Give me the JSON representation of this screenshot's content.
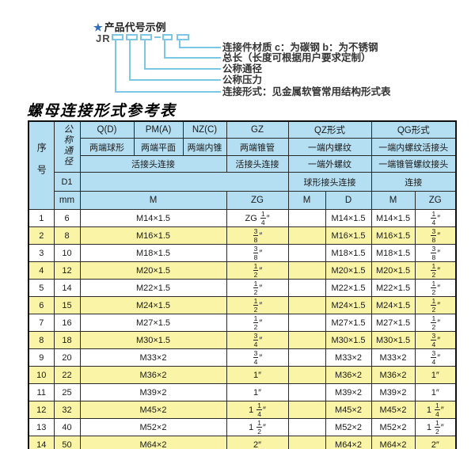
{
  "diagram": {
    "heading": "产品代号示例",
    "star": "★",
    "code_prefix": "JR",
    "dash": "—",
    "labels": [
      "连接件材质  c：为碳钢  b：为不锈钢",
      "总长（长度可根据用户要求定制）",
      "公称通径",
      "公称压力",
      "连接形式：见金属软管常用结构形式表"
    ]
  },
  "table": {
    "title": "螺母连接形式参考表",
    "header": {
      "serial": "序号",
      "dn": "公称通径",
      "d1": "D1",
      "mm": "mm",
      "qd": "Q(D)",
      "pma": "PM(A)",
      "nzc": "NZ(C)",
      "gz": "GZ",
      "qz": "QZ形式",
      "qg": "QG形式",
      "qd_desc": "两端球形",
      "pma_desc": "两端平面",
      "nzc_desc": "两端内锥",
      "gz_desc": "两端锥管",
      "qz_desc1": "一端内螺纹",
      "qg_desc1": "一端内螺纹活接头",
      "union_conn": "活接头连接",
      "gz_conn": "活接头连接",
      "qz_desc2": "一端外螺纹",
      "qg_desc2": "一端锥管螺纹接头",
      "qz_conn": "球形接头连接",
      "qg_conn": "连接",
      "m": "M",
      "zg": "ZG",
      "qz_m": "M",
      "qz_d": "D",
      "qg_m": "M",
      "qg_zg": "ZG"
    },
    "rows": [
      {
        "no": "1",
        "dn": "6",
        "m": "M14×1.5",
        "zg": "ZG 1/4″",
        "qz_m": "",
        "qz_d": "M14×1.5",
        "qg_m": "M14×1.5",
        "qg_zg": "1/4″"
      },
      {
        "no": "2",
        "dn": "8",
        "m": "M16×1.5",
        "zg": "3/8″",
        "qz_m": "",
        "qz_d": "M16×1.5",
        "qg_m": "M16×1.5",
        "qg_zg": "3/8″"
      },
      {
        "no": "3",
        "dn": "10",
        "m": "M18×1.5",
        "zg": "3/8″",
        "qz_m": "",
        "qz_d": "M18×1.5",
        "qg_m": "M18×1.5",
        "qg_zg": "3/8″"
      },
      {
        "no": "4",
        "dn": "12",
        "m": "M20×1.5",
        "zg": "1/2″",
        "qz_m": "",
        "qz_d": "M20×1.5",
        "qg_m": "M20×1.5",
        "qg_zg": "1/2″"
      },
      {
        "no": "5",
        "dn": "14",
        "m": "M22×1.5",
        "zg": "1/2″",
        "qz_m": "",
        "qz_d": "M22×1.5",
        "qg_m": "M22×1.5",
        "qg_zg": "1/2″"
      },
      {
        "no": "6",
        "dn": "15",
        "m": "M24×1.5",
        "zg": "1/2″",
        "qz_m": "",
        "qz_d": "M24×1.5",
        "qg_m": "M24×1.5",
        "qg_zg": "1/2″"
      },
      {
        "no": "7",
        "dn": "16",
        "m": "M27×1.5",
        "zg": "1/2″",
        "qz_m": "",
        "qz_d": "M27×1.5",
        "qg_m": "M27×1.5",
        "qg_zg": "1/2″"
      },
      {
        "no": "8",
        "dn": "18",
        "m": "M30×1.5",
        "zg": "3/4″",
        "qz_m": "",
        "qz_d": "M30×1.5",
        "qg_m": "M30×1.5",
        "qg_zg": "3/4″"
      },
      {
        "no": "9",
        "dn": "20",
        "m": "M33×2",
        "zg": "3/4″",
        "qz_m": "",
        "qz_d": "M33×2",
        "qg_m": "M33×2",
        "qg_zg": "3/4″"
      },
      {
        "no": "10",
        "dn": "22",
        "m": "M36×2",
        "zg": "1″",
        "qz_m": "",
        "qz_d": "M36×2",
        "qg_m": "M36×2",
        "qg_zg": "1″"
      },
      {
        "no": "11",
        "dn": "25",
        "m": "M39×2",
        "zg": "1″",
        "qz_m": "",
        "qz_d": "M39×2",
        "qg_m": "M39×2",
        "qg_zg": "1″"
      },
      {
        "no": "12",
        "dn": "32",
        "m": "M45×2",
        "zg": "1 1/4″",
        "qz_m": "",
        "qz_d": "M45×2",
        "qg_m": "M45×2",
        "qg_zg": "1 1/4″"
      },
      {
        "no": "13",
        "dn": "40",
        "m": "M52×2",
        "zg": "1 1/2″",
        "qz_m": "",
        "qz_d": "M52×2",
        "qg_m": "M52×2",
        "qg_zg": "1 1/2″"
      },
      {
        "no": "14",
        "dn": "50",
        "m": "M64×2",
        "zg": "2″",
        "qz_m": "",
        "qz_d": "M64×2",
        "qg_m": "M64×2",
        "qg_zg": "2″"
      }
    ]
  },
  "colors": {
    "header_bg": "#b4def1",
    "row_alt_bg": "#f9f4a6",
    "line_color": "#7cc7e5",
    "star_color": "#2e6fbe",
    "border_color": "#2a2a2a"
  }
}
